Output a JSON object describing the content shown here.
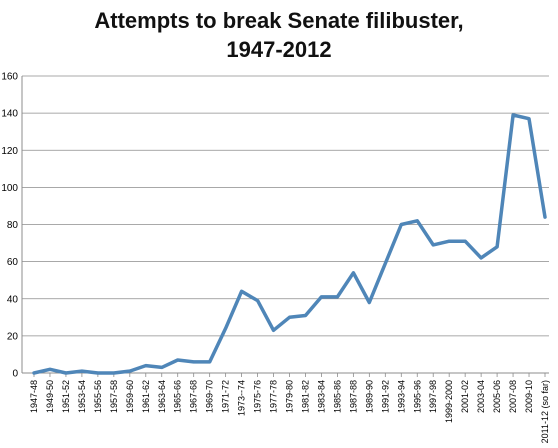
{
  "chart_data": {
    "type": "line",
    "title_line1": "Attempts to break Senate filibuster,",
    "title_line2": "1947-2012",
    "xlabel": "",
    "ylabel": "",
    "ylim": [
      0,
      160
    ],
    "yticks": [
      0,
      20,
      40,
      60,
      80,
      100,
      120,
      140,
      160
    ],
    "grid": true,
    "line_color": "#4f86b8",
    "categories": [
      "1947-48",
      "1949-50",
      "1951-52",
      "1953-54",
      "1955-56",
      "1957-58",
      "1959-60",
      "1961-62",
      "1963-64",
      "1965-66",
      "1967-68",
      "1969-70",
      "1971-72",
      "1973--74",
      "1975-76",
      "1977-78",
      "1979-80",
      "1981-82",
      "1983-84",
      "1985-86",
      "1987-88",
      "1989-90",
      "1991-92",
      "1993-94",
      "1995-96",
      "1997-98",
      "1999-2000",
      "2001-02",
      "2003-04",
      "2005-06",
      "2007-08",
      "2009-10",
      "2011-12 (so far)"
    ],
    "values": [
      0,
      2,
      0,
      1,
      0,
      0,
      1,
      4,
      3,
      7,
      6,
      6,
      24,
      44,
      39,
      23,
      30,
      31,
      41,
      41,
      54,
      38,
      59,
      80,
      82,
      69,
      71,
      71,
      62,
      68,
      139,
      137,
      84
    ]
  }
}
